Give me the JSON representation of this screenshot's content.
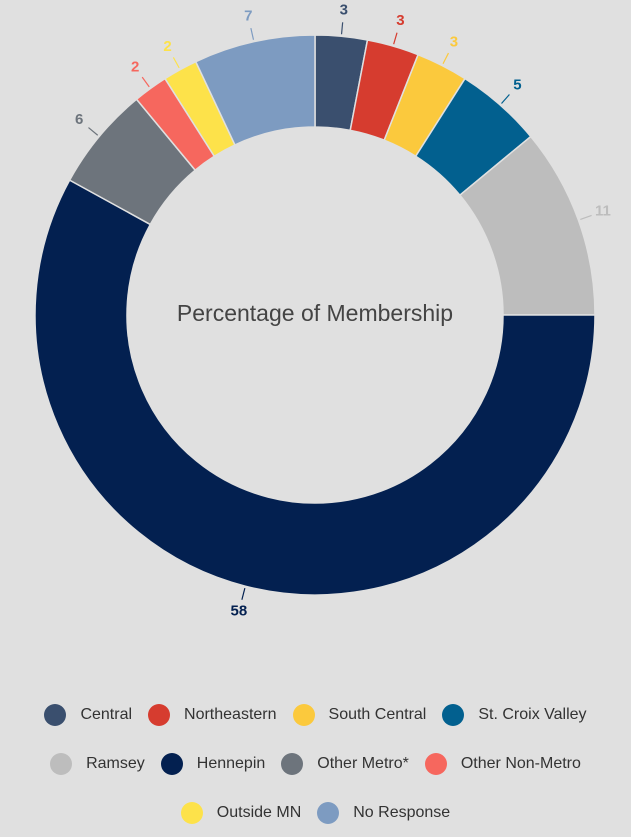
{
  "chart_data": {
    "type": "donut",
    "title": "Percentage of Membership",
    "categories": [
      "Central",
      "Northeastern",
      "South Central",
      "St. Croix Valley",
      "Ramsey",
      "Hennepin",
      "Other Metro*",
      "Other Non-Metro",
      "Outside MN",
      "No Response"
    ],
    "values": [
      3,
      3,
      3,
      5,
      11,
      58,
      6,
      2,
      2,
      7
    ],
    "colors": [
      "#3a4f6e",
      "#d63c2f",
      "#fbc93d",
      "#02608f",
      "#bdbdbd",
      "#032050",
      "#6d747c",
      "#f6675e",
      "#fde24a",
      "#7d9bc1"
    ],
    "legend": "bottom"
  }
}
